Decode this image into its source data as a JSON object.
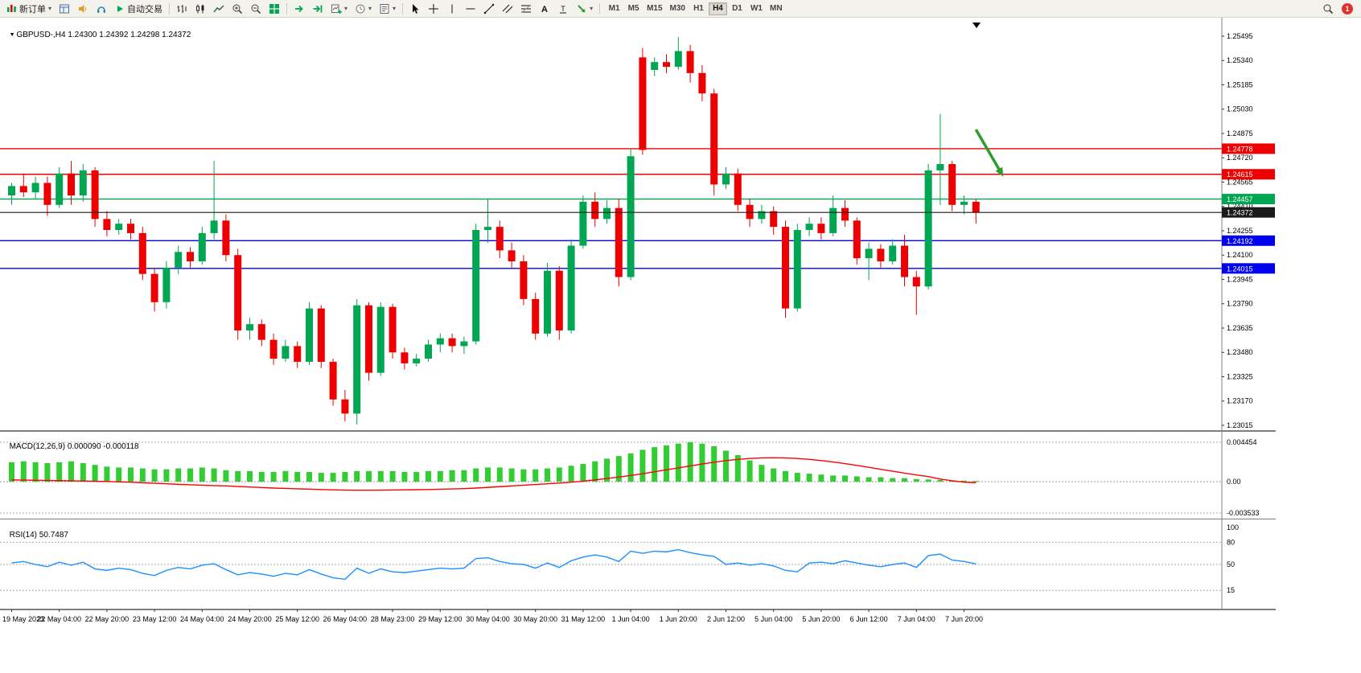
{
  "toolbar": {
    "new_order_label": "新订单",
    "auto_trading_label": "自动交易",
    "timeframes": [
      "M1",
      "M5",
      "M15",
      "M30",
      "H1",
      "H4",
      "D1",
      "W1",
      "MN"
    ],
    "active_timeframe": "H4",
    "notification_count": "1"
  },
  "chart": {
    "symbol_period": "GBPUSD-,H4",
    "ohlc_readout": "1.24300 1.24392 1.24298 1.24372"
  },
  "chart_data": [
    {
      "type": "candlestick",
      "symbol": "GBPUSD-",
      "timeframe": "H4",
      "open": "1.24300",
      "high": "1.24392",
      "low": "1.24298",
      "close": "1.24372",
      "colors": {
        "up": "#00A651",
        "down": "#EE0000"
      },
      "price_ticks": [
        "1.25495",
        "1.25340",
        "1.25185",
        "1.25030",
        "1.24875",
        "1.24720",
        "1.24565",
        "1.24410",
        "1.24255",
        "1.24100",
        "1.23945",
        "1.23790",
        "1.23635",
        "1.23480",
        "1.23325",
        "1.23170",
        "1.23015"
      ],
      "hlines": [
        {
          "price": 1.24778,
          "color": "#EE0000",
          "label": "1.24778"
        },
        {
          "price": 1.24615,
          "color": "#EE0000",
          "label": "1.24615"
        },
        {
          "price": 1.24457,
          "color": "#00A651",
          "label": "1.24457"
        },
        {
          "price": 1.24192,
          "color": "#0000EE",
          "label": "1.24192"
        },
        {
          "price": 1.24015,
          "color": "#0000EE",
          "label": "1.24015"
        }
      ],
      "current_price": {
        "price": 1.24372,
        "label": "1.24372",
        "color": "#1a1a1a"
      },
      "arrow": {
        "from_index": 81,
        "from_price": 1.249,
        "to_index": 83.3,
        "to_price": 1.246,
        "color": "#2E9B2E"
      },
      "time_labels": [
        "19 May 2023",
        "22 May 04:00",
        "22 May 20:00",
        "23 May 12:00",
        "24 May 04:00",
        "24 May 20:00",
        "25 May 12:00",
        "26 May 04:00",
        "28 May 23:00",
        "29 May 12:00",
        "30 May 04:00",
        "30 May 20:00",
        "31 May 12:00",
        "1 Jun 04:00",
        "1 Jun 20:00",
        "2 Jun 12:00",
        "5 Jun 04:00",
        "5 Jun 20:00",
        "6 Jun 12:00",
        "7 Jun 04:00",
        "7 Jun 20:00"
      ],
      "candles": [
        [
          1.2448,
          1.2456,
          1.2442,
          1.2454
        ],
        [
          1.2454,
          1.2462,
          1.2447,
          1.245
        ],
        [
          1.245,
          1.246,
          1.2446,
          1.2456
        ],
        [
          1.2456,
          1.246,
          1.2435,
          1.2442
        ],
        [
          1.2442,
          1.2466,
          1.244,
          1.2462
        ],
        [
          1.2462,
          1.247,
          1.2442,
          1.2448
        ],
        [
          1.2448,
          1.2468,
          1.2444,
          1.2464
        ],
        [
          1.2464,
          1.2466,
          1.2428,
          1.2433
        ],
        [
          1.2433,
          1.2438,
          1.2422,
          1.2426
        ],
        [
          1.2426,
          1.2433,
          1.2423,
          1.243
        ],
        [
          1.243,
          1.2433,
          1.242,
          1.2424
        ],
        [
          1.2424,
          1.2428,
          1.2394,
          1.2398
        ],
        [
          1.2398,
          1.2402,
          1.2374,
          1.238
        ],
        [
          1.238,
          1.2406,
          1.2376,
          1.2402
        ],
        [
          1.2402,
          1.2416,
          1.2398,
          1.2412
        ],
        [
          1.2412,
          1.2415,
          1.2402,
          1.2406
        ],
        [
          1.2406,
          1.2428,
          1.2404,
          1.2424
        ],
        [
          1.2424,
          1.247,
          1.242,
          1.2432
        ],
        [
          1.2432,
          1.2436,
          1.2406,
          1.241
        ],
        [
          1.241,
          1.2414,
          1.2356,
          1.2362
        ],
        [
          1.2362,
          1.237,
          1.2356,
          1.2366
        ],
        [
          1.2366,
          1.2369,
          1.2352,
          1.2356
        ],
        [
          1.2356,
          1.236,
          1.234,
          1.2344
        ],
        [
          1.2344,
          1.2356,
          1.2342,
          1.2352
        ],
        [
          1.2352,
          1.2355,
          1.2338,
          1.2342
        ],
        [
          1.2342,
          1.238,
          1.234,
          1.2376
        ],
        [
          1.2376,
          1.2378,
          1.2338,
          1.2342
        ],
        [
          1.2342,
          1.2344,
          1.2314,
          1.2318
        ],
        [
          1.2318,
          1.2324,
          1.2304,
          1.2309
        ],
        [
          1.2309,
          1.2382,
          1.2302,
          1.2378
        ],
        [
          1.2378,
          1.238,
          1.233,
          1.2335
        ],
        [
          1.2335,
          1.238,
          1.2333,
          1.2377
        ],
        [
          1.2377,
          1.2379,
          1.2344,
          1.2348
        ],
        [
          1.2348,
          1.2351,
          1.2337,
          1.2341
        ],
        [
          1.2341,
          1.2347,
          1.2339,
          1.2344
        ],
        [
          1.2344,
          1.2356,
          1.2342,
          1.2353
        ],
        [
          1.2353,
          1.236,
          1.2348,
          1.2357
        ],
        [
          1.2357,
          1.236,
          1.2348,
          1.2352
        ],
        [
          1.2352,
          1.2358,
          1.2347,
          1.2355
        ],
        [
          1.2355,
          1.243,
          1.2353,
          1.2426
        ],
        [
          1.2426,
          1.2446,
          1.2418,
          1.2428
        ],
        [
          1.2428,
          1.2432,
          1.2408,
          1.2413
        ],
        [
          1.2413,
          1.2418,
          1.2402,
          1.2406
        ],
        [
          1.2406,
          1.241,
          1.2378,
          1.2382
        ],
        [
          1.2382,
          1.2386,
          1.2356,
          1.236
        ],
        [
          1.236,
          1.2405,
          1.2358,
          1.24
        ],
        [
          1.24,
          1.2403,
          1.2356,
          1.2362
        ],
        [
          1.2362,
          1.242,
          1.236,
          1.2416
        ],
        [
          1.2416,
          1.2448,
          1.2414,
          1.2444
        ],
        [
          1.2444,
          1.245,
          1.2428,
          1.2433
        ],
        [
          1.2433,
          1.2445,
          1.243,
          1.244
        ],
        [
          1.244,
          1.2446,
          1.239,
          1.2396
        ],
        [
          1.2396,
          1.2478,
          1.2394,
          1.2473
        ],
        [
          1.2536,
          1.2542,
          1.2474,
          1.2477
        ],
        [
          1.2528,
          1.2536,
          1.2524,
          1.2533
        ],
        [
          1.2533,
          1.2538,
          1.2526,
          1.253
        ],
        [
          1.253,
          1.2549,
          1.2528,
          1.254
        ],
        [
          1.254,
          1.2544,
          1.252,
          1.2526
        ],
        [
          1.2526,
          1.2531,
          1.2508,
          1.2513
        ],
        [
          1.2513,
          1.2516,
          1.2448,
          1.2455
        ],
        [
          1.2455,
          1.2466,
          1.2452,
          1.2462
        ],
        [
          1.2462,
          1.2465,
          1.2438,
          1.2442
        ],
        [
          1.2442,
          1.2446,
          1.2428,
          1.2433
        ],
        [
          1.2433,
          1.2442,
          1.243,
          1.2438
        ],
        [
          1.2438,
          1.2441,
          1.2423,
          1.2428
        ],
        [
          1.2428,
          1.2432,
          1.237,
          1.2376
        ],
        [
          1.2376,
          1.243,
          1.2374,
          1.2426
        ],
        [
          1.2426,
          1.2434,
          1.2422,
          1.243
        ],
        [
          1.243,
          1.2434,
          1.242,
          1.2424
        ],
        [
          1.2424,
          1.2448,
          1.2422,
          1.244
        ],
        [
          1.244,
          1.2445,
          1.2428,
          1.2432
        ],
        [
          1.2432,
          1.2434,
          1.2404,
          1.2408
        ],
        [
          1.2408,
          1.2418,
          1.2394,
          1.2414
        ],
        [
          1.2414,
          1.2417,
          1.2402,
          1.2406
        ],
        [
          1.2406,
          1.242,
          1.2404,
          1.2416
        ],
        [
          1.2416,
          1.2423,
          1.239,
          1.2396
        ],
        [
          1.2396,
          1.24,
          1.2372,
          1.239
        ],
        [
          1.239,
          1.2468,
          1.2388,
          1.2464
        ],
        [
          1.2464,
          1.25,
          1.2442,
          1.2468
        ],
        [
          1.2468,
          1.247,
          1.2438,
          1.2442
        ],
        [
          1.2442,
          1.2448,
          1.2436,
          1.2444
        ],
        [
          1.2444,
          1.2446,
          1.243,
          1.24372
        ]
      ]
    },
    {
      "type": "bar",
      "title": "MACD(12,26,9)",
      "readout": "0.000090 -0.000118",
      "bar_color": "#32CD32",
      "signal_color": "#FF0000",
      "scale_max": 0.004454,
      "scale_min": -0.003533,
      "scale_labels": [
        "0.004454",
        "0.00",
        "-0.003533"
      ],
      "values": [
        0.0022,
        0.0023,
        0.0022,
        0.0021,
        0.0022,
        0.0023,
        0.0021,
        0.0019,
        0.0017,
        0.0016,
        0.0016,
        0.0015,
        0.0014,
        0.0014,
        0.0015,
        0.0015,
        0.0016,
        0.0015,
        0.0013,
        0.0012,
        0.0012,
        0.0011,
        0.0011,
        0.0012,
        0.0011,
        0.0011,
        0.001,
        0.001,
        0.0011,
        0.0012,
        0.0012,
        0.0012,
        0.0012,
        0.0011,
        0.0011,
        0.0012,
        0.0012,
        0.0013,
        0.0013,
        0.0015,
        0.0016,
        0.0016,
        0.0015,
        0.0014,
        0.0014,
        0.0015,
        0.0016,
        0.0018,
        0.002,
        0.0023,
        0.0026,
        0.0029,
        0.0032,
        0.0036,
        0.0039,
        0.0041,
        0.0043,
        0.004454,
        0.0043,
        0.004,
        0.0035,
        0.003,
        0.0024,
        0.0019,
        0.0015,
        0.0012,
        0.001,
        0.0009,
        0.0008,
        0.0007,
        0.0007,
        0.0006,
        0.0005,
        0.0005,
        0.0004,
        0.0004,
        0.0003,
        0.00025,
        0.0002,
        0.00015,
        0.00012,
        9e-05
      ],
      "signal": [
        0.0002,
        0.00018,
        0.00016,
        0.00014,
        0.00012,
        0.0001,
        8e-05,
        5e-05,
        2e-05,
        -2e-05,
        -6e-05,
        -0.00012,
        -0.00018,
        -0.00024,
        -0.0003,
        -0.00035,
        -0.0004,
        -0.00044,
        -0.00048,
        -0.00054,
        -0.0006,
        -0.00066,
        -0.00072,
        -0.00076,
        -0.0008,
        -0.00084,
        -0.00088,
        -0.00092,
        -0.00095,
        -0.00096,
        -0.00096,
        -0.00095,
        -0.00094,
        -0.00092,
        -0.0009,
        -0.00088,
        -0.00085,
        -0.00082,
        -0.00078,
        -0.00072,
        -0.00064,
        -0.00056,
        -0.00048,
        -0.0004,
        -0.00032,
        -0.00024,
        -0.00016,
        -6e-05,
        6e-05,
        0.0002,
        0.00036,
        0.00052,
        0.0007,
        0.0009,
        0.00112,
        0.00134,
        0.00156,
        0.00178,
        0.002,
        0.0022,
        0.00238,
        0.00252,
        0.00262,
        0.00268,
        0.0027,
        0.00268,
        0.00262,
        0.00252,
        0.00238,
        0.00222,
        0.00204,
        0.00184,
        0.00162,
        0.0014,
        0.00118,
        0.00096,
        0.00076,
        0.00058,
        0.0003,
        0.0001,
        -5e-05,
        -0.000118
      ]
    },
    {
      "type": "line",
      "title": "RSI(14)",
      "readout": "50.7487",
      "line_color": "#1E90FF",
      "range": [
        0,
        100
      ],
      "levels": [
        "100",
        "80",
        "50",
        "15"
      ],
      "values": [
        52,
        54,
        50,
        47,
        53,
        49,
        53,
        44,
        42,
        45,
        43,
        38,
        35,
        42,
        46,
        44,
        49,
        51,
        43,
        36,
        39,
        37,
        34,
        38,
        36,
        43,
        37,
        32,
        30,
        45,
        38,
        44,
        40,
        39,
        41,
        43,
        45,
        44,
        45,
        58,
        59,
        54,
        51,
        50,
        45,
        52,
        46,
        55,
        60,
        63,
        60,
        54,
        68,
        65,
        68,
        67,
        70,
        66,
        63,
        61,
        50,
        52,
        49,
        51,
        48,
        42,
        40,
        52,
        53,
        51,
        55,
        52,
        49,
        47,
        50,
        52,
        46,
        62,
        64,
        56,
        54,
        50.7487
      ]
    }
  ]
}
